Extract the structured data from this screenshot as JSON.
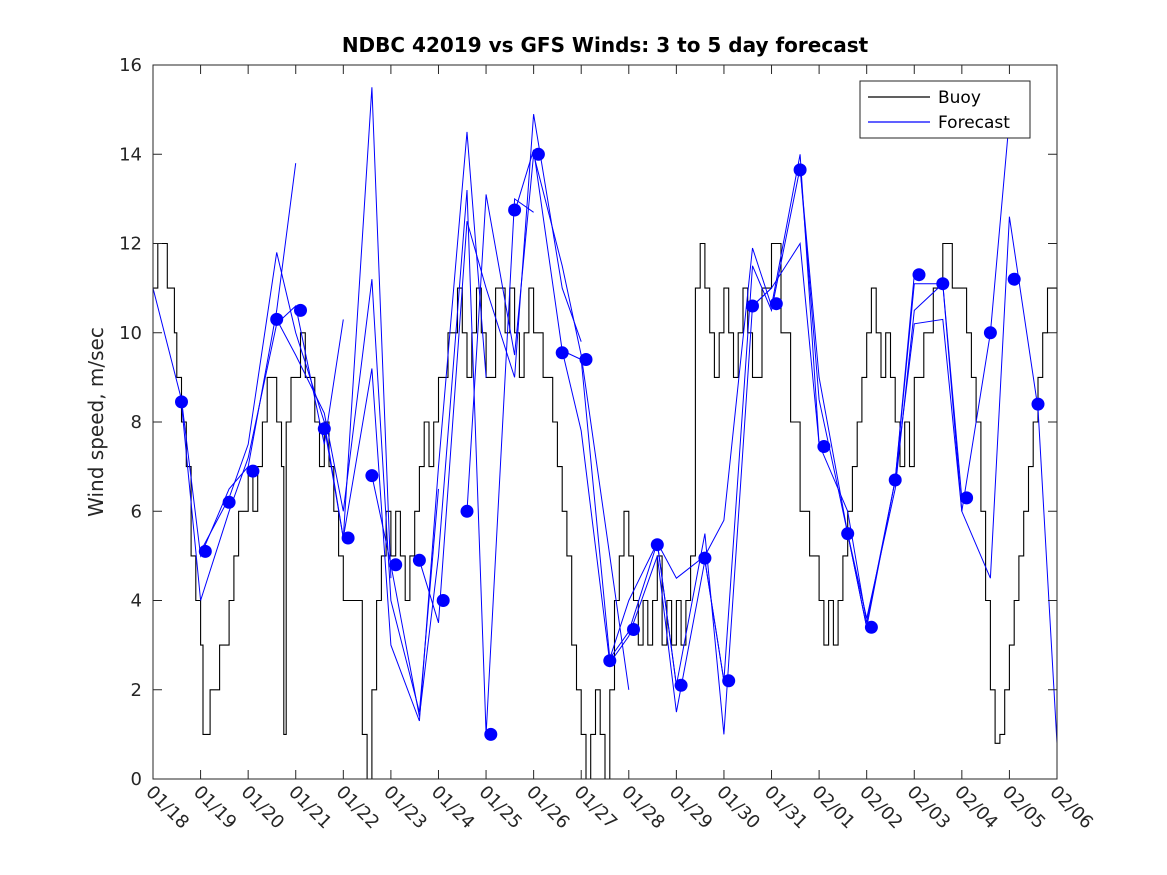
{
  "chart_data": {
    "type": "line",
    "title": "NDBC 42019 vs GFS Winds: 3 to 5 day forecast",
    "xlabel": "",
    "ylabel": "Wind speed, m/sec",
    "xlim": [
      0,
      19
    ],
    "ylim": [
      0,
      16
    ],
    "yticks": [
      0,
      2,
      4,
      6,
      8,
      10,
      12,
      14,
      16
    ],
    "xticks": [
      0,
      1,
      2,
      3,
      4,
      5,
      6,
      7,
      8,
      9,
      10,
      11,
      12,
      13,
      14,
      15,
      16,
      17,
      18,
      19
    ],
    "xtick_labels": [
      "01/18",
      "01/19",
      "01/20",
      "01/21",
      "01/22",
      "01/23",
      "01/24",
      "01/25",
      "01/26",
      "01/27",
      "01/28",
      "01/29",
      "01/30",
      "01/31",
      "02/01",
      "02/02",
      "02/03",
      "02/04",
      "02/05",
      "02/06"
    ],
    "legend": {
      "position": "top-right",
      "entries": [
        "Buoy",
        "Forecast"
      ]
    },
    "colors": {
      "buoy": "#000000",
      "forecast": "#0000ff",
      "markers": "#0000ff",
      "axes": "#262626"
    },
    "series": [
      {
        "name": "Buoy",
        "x": [
          0.0,
          0.1,
          0.2,
          0.3,
          0.45,
          0.5,
          0.6,
          0.7,
          0.8,
          0.9,
          1.0,
          1.05,
          1.2,
          1.4,
          1.5,
          1.6,
          1.7,
          1.8,
          2.0,
          2.1,
          2.2,
          2.3,
          2.4,
          2.5,
          2.6,
          2.7,
          2.75,
          2.8,
          2.9,
          3.0,
          3.1,
          3.2,
          3.3,
          3.4,
          3.5,
          3.6,
          3.7,
          3.8,
          3.9,
          4.0,
          4.2,
          4.4,
          4.5,
          4.6,
          4.7,
          4.8,
          4.9,
          5.0,
          5.1,
          5.2,
          5.3,
          5.4,
          5.5,
          5.6,
          5.7,
          5.8,
          5.9,
          6.0,
          6.2,
          6.4,
          6.5,
          6.6,
          6.7,
          6.8,
          6.9,
          7.0,
          7.2,
          7.4,
          7.5,
          7.6,
          7.7,
          7.8,
          7.9,
          8.0,
          8.2,
          8.4,
          8.5,
          8.6,
          8.7,
          8.8,
          8.9,
          9.0,
          9.1,
          9.2,
          9.3,
          9.4,
          9.5,
          9.6,
          9.7,
          9.8,
          9.9,
          10.0,
          10.1,
          10.2,
          10.3,
          10.4,
          10.5,
          10.6,
          10.7,
          10.8,
          10.9,
          11.0,
          11.1,
          11.2,
          11.3,
          11.4,
          11.5,
          11.6,
          11.7,
          11.8,
          11.9,
          12.0,
          12.1,
          12.2,
          12.3,
          12.4,
          12.5,
          12.6,
          12.8,
          13.0,
          13.2,
          13.4,
          13.6,
          13.8,
          14.0,
          14.1,
          14.2,
          14.3,
          14.4,
          14.5,
          14.6,
          14.7,
          14.8,
          14.9,
          15.0,
          15.1,
          15.2,
          15.3,
          15.4,
          15.5,
          15.6,
          15.7,
          15.8,
          15.9,
          16.0,
          16.2,
          16.4,
          16.6,
          16.8,
          17.0,
          17.1,
          17.2,
          17.3,
          17.4,
          17.5,
          17.6,
          17.7,
          17.8,
          17.9,
          18.0,
          18.1,
          18.2,
          18.3,
          18.4,
          18.5,
          18.6,
          18.7,
          18.8,
          18.9,
          19.0
        ],
        "values": [
          11,
          12,
          12,
          11,
          10,
          9,
          8,
          7,
          5,
          4,
          3,
          1,
          2,
          3,
          3,
          4,
          5,
          6,
          7,
          6,
          7,
          8,
          9,
          9,
          8,
          7,
          1,
          8,
          9,
          9,
          10,
          9,
          9,
          8,
          7,
          8,
          7,
          6,
          5,
          4,
          4,
          1,
          0,
          2,
          4,
          5,
          6,
          5,
          6,
          5,
          4,
          5,
          6,
          7,
          8,
          7,
          8,
          9,
          10,
          11,
          10,
          9,
          10,
          11,
          10,
          9,
          11,
          10,
          11,
          10,
          9,
          10,
          11,
          10,
          9,
          8,
          7,
          6,
          5,
          3,
          2,
          1,
          0,
          1,
          2,
          1,
          0,
          2,
          4,
          5,
          6,
          5,
          4,
          3,
          4,
          3,
          4,
          5,
          3,
          4,
          3,
          4,
          3,
          4,
          5,
          11,
          12,
          11,
          10,
          9,
          10,
          11,
          10,
          9,
          10,
          11,
          10,
          9,
          11,
          12,
          10,
          8,
          6,
          5,
          4,
          3,
          4,
          3,
          4,
          5,
          6,
          7,
          8,
          9,
          10,
          11,
          10,
          9,
          10,
          9,
          8,
          7,
          8,
          7,
          9,
          10,
          11,
          12,
          11,
          11,
          10,
          9,
          8,
          6,
          4,
          2,
          0.8,
          1,
          2,
          3,
          4,
          5,
          6,
          7,
          8,
          9,
          10,
          11,
          11,
          10
        ]
      },
      {
        "name": "Forecast",
        "runs": [
          {
            "x": [
              0.0,
              0.6,
              1.0,
              1.6,
              2.0,
              2.6,
              3.0
            ],
            "values": [
              11.0,
              8.5,
              5.0,
              6.5,
              7.0,
              10.5,
              13.8
            ]
          },
          {
            "x": [
              0.6,
              1.0,
              1.6,
              2.0,
              2.6,
              3.0,
              3.6,
              4.0
            ],
            "values": [
              8.4,
              4.0,
              6.0,
              7.2,
              10.2,
              10.6,
              7.5,
              10.3
            ]
          },
          {
            "x": [
              1.0,
              1.6,
              2.0,
              2.6,
              3.0,
              3.6,
              4.0,
              4.6,
              5.0
            ],
            "values": [
              5.1,
              6.3,
              7.5,
              11.8,
              10.0,
              8.0,
              5.4,
              15.5,
              4.5
            ]
          },
          {
            "x": [
              2.6,
              3.0,
              3.6,
              4.0,
              4.6,
              5.0,
              5.6,
              6.0
            ],
            "values": [
              10.3,
              9.5,
              8.2,
              6.0,
              11.2,
              4.0,
              1.5,
              6.5
            ]
          },
          {
            "x": [
              3.6,
              4.0,
              4.6,
              5.0,
              5.6,
              6.0,
              6.6,
              7.0
            ],
            "values": [
              7.9,
              5.4,
              9.2,
              3.0,
              1.3,
              7.0,
              14.5,
              9.0
            ]
          },
          {
            "x": [
              4.6,
              5.0,
              5.6,
              6.0,
              6.6,
              7.0,
              7.6,
              8.0
            ],
            "values": [
              6.8,
              4.8,
              1.4,
              5.0,
              13.2,
              1.0,
              13.0,
              12.7
            ]
          },
          {
            "x": [
              5.6,
              6.0,
              6.6,
              7.0,
              7.6,
              8.0,
              8.6,
              9.0
            ],
            "values": [
              4.9,
              3.5,
              12.5,
              11.0,
              9.0,
              14.9,
              11.0,
              9.8
            ]
          },
          {
            "x": [
              6.6,
              7.0,
              7.6,
              8.0,
              8.6,
              9.0,
              9.6,
              10.0
            ],
            "values": [
              6.0,
              13.1,
              9.5,
              14.0,
              11.5,
              9.5,
              5.0,
              2.0
            ]
          },
          {
            "x": [
              7.6,
              8.0,
              8.6,
              9.0,
              9.6,
              10.0,
              10.6,
              11.0
            ],
            "values": [
              12.7,
              14.1,
              9.6,
              9.4,
              2.7,
              3.3,
              5.3,
              2.1
            ]
          },
          {
            "x": [
              8.6,
              9.0,
              9.6,
              10.0,
              10.6,
              11.0,
              11.6,
              12.0
            ],
            "values": [
              9.6,
              7.8,
              2.6,
              3.2,
              5.0,
              1.5,
              4.9,
              2.2
            ]
          },
          {
            "x": [
              9.6,
              10.0,
              10.6,
              11.0,
              11.6,
              12.0,
              12.6,
              13.0
            ],
            "values": [
              2.7,
              4.0,
              5.3,
              2.1,
              5.5,
              1.0,
              10.6,
              11.0
            ]
          },
          {
            "x": [
              10.6,
              11.0,
              11.6,
              12.0,
              12.6,
              13.0,
              13.6,
              14.0
            ],
            "values": [
              5.3,
              4.5,
              5.0,
              5.8,
              11.9,
              10.6,
              14.0,
              7.5
            ]
          },
          {
            "x": [
              11.6,
              12.0,
              12.6,
              13.0,
              13.6,
              14.0,
              14.6,
              15.0
            ],
            "values": [
              4.9,
              2.2,
              11.5,
              10.5,
              13.7,
              9.0,
              5.5,
              3.4
            ]
          },
          {
            "x": [
              12.6,
              13.0,
              13.6,
              14.0,
              14.6,
              15.0,
              15.6,
              16.0
            ],
            "values": [
              10.6,
              11.0,
              12.0,
              7.5,
              6.0,
              3.5,
              6.7,
              11.3
            ]
          },
          {
            "x": [
              13.6,
              14.0,
              14.6,
              15.0,
              15.6,
              16.0,
              16.6,
              17.0
            ],
            "values": [
              13.7,
              8.5,
              5.5,
              3.6,
              6.5,
              10.5,
              11.1,
              6.3
            ]
          },
          {
            "x": [
              14.6,
              15.0,
              15.6,
              16.0,
              16.6,
              17.0,
              17.6,
              18.0
            ],
            "values": [
              5.5,
              3.4,
              6.7,
              11.1,
              11.1,
              6.0,
              10.0,
              14.8
            ]
          },
          {
            "x": [
              15.6,
              16.0,
              16.6,
              17.0,
              17.6,
              18.0,
              18.6,
              19.0
            ],
            "values": [
              6.7,
              10.2,
              10.3,
              6.0,
              4.5,
              12.6,
              8.3,
              0.8
            ]
          }
        ]
      },
      {
        "name": "Forecast markers",
        "x": [
          0.6,
          1.1,
          1.6,
          2.1,
          2.6,
          3.1,
          3.6,
          4.1,
          4.6,
          5.1,
          5.6,
          6.1,
          6.6,
          7.1,
          7.6,
          8.1,
          8.6,
          9.1,
          9.6,
          10.1,
          10.6,
          11.1,
          11.6,
          12.1,
          12.6,
          13.1,
          13.6,
          14.1,
          14.6,
          15.1,
          15.6,
          16.1,
          16.6,
          17.1,
          17.6,
          18.1,
          18.6
        ],
        "values": [
          8.45,
          5.1,
          6.2,
          6.9,
          10.3,
          10.5,
          7.85,
          5.4,
          6.8,
          4.8,
          4.9,
          4.0,
          6.0,
          1.0,
          12.75,
          14.0,
          9.55,
          9.4,
          2.65,
          3.35,
          5.25,
          2.1,
          4.95,
          2.2,
          10.6,
          10.65,
          13.65,
          7.45,
          5.5,
          3.4,
          6.7,
          11.3,
          11.1,
          6.3,
          10.0,
          11.2,
          8.4
        ]
      }
    ]
  }
}
